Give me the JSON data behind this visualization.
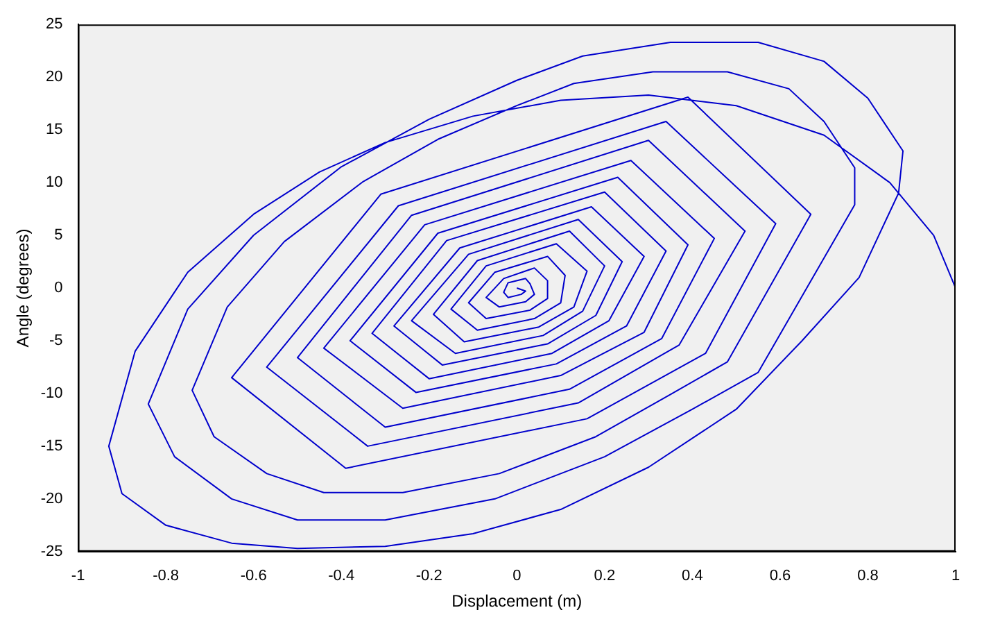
{
  "chart_data": {
    "type": "line",
    "xlabel": "Displacement (m)",
    "ylabel": "Angle (degrees)",
    "marker": "none",
    "grid": false,
    "legend": false,
    "xlim": [
      -1,
      1
    ],
    "xticks": [
      -1,
      -0.8,
      -0.6,
      -0.4,
      -0.2,
      0,
      0.2,
      0.4,
      0.6,
      0.8,
      1
    ],
    "ylim": [
      -25,
      25
    ],
    "yticks": [
      -25,
      -20,
      -15,
      -10,
      -5,
      0,
      5,
      10,
      15,
      20,
      25
    ],
    "series": [
      {
        "color": "#0000cc",
        "x": [
          1,
          0.95,
          0.85,
          0.7,
          0.5,
          0.3,
          0.1,
          -0.1,
          -0.3,
          -0.45,
          -0.6,
          -0.75,
          -0.87,
          -0.93,
          -0.9,
          -0.8,
          -0.65,
          -0.5,
          -0.3,
          -0.1,
          0.1,
          0.3,
          0.5,
          0.65,
          0.78,
          0.87,
          0.88,
          0.8,
          0.7,
          0.55,
          0.35,
          0.15,
          0,
          -0.2,
          -0.4,
          -0.6,
          -0.75,
          -0.84,
          -0.78,
          -0.65,
          -0.5,
          -0.3,
          -0.05,
          0.2,
          0.4,
          0.55,
          0.77,
          0.77,
          0.7,
          0.62,
          0.48,
          0.31,
          0.13,
          0,
          -0.18,
          -0.35,
          -0.53,
          -0.66,
          -0.74,
          -0.69,
          -0.57,
          -0.44,
          -0.26,
          -0.04,
          0.18,
          0.35,
          0.48,
          0.67,
          0.39,
          -0.31,
          -0.65,
          -0.39,
          0.16,
          0.43,
          0.59,
          0.34,
          -0.27,
          -0.57,
          -0.34,
          0.14,
          0.37,
          0.52,
          0.3,
          -0.24,
          -0.5,
          -0.3,
          0.12,
          0.33,
          0.45,
          0.26,
          -0.21,
          -0.44,
          -0.26,
          0.1,
          0.29,
          0.39,
          0.23,
          -0.18,
          -0.38,
          -0.23,
          0.09,
          0.25,
          0.34,
          0.2,
          -0.16,
          -0.33,
          -0.2,
          0.08,
          0.21,
          0.29,
          0.17,
          -0.13,
          -0.28,
          -0.17,
          0.07,
          0.18,
          0.24,
          0.14,
          -0.11,
          -0.24,
          -0.14,
          0.06,
          0.15,
          0.2,
          0.12,
          -0.09,
          -0.19,
          -0.12,
          0.05,
          0.13,
          0.16,
          0.09,
          -0.07,
          -0.15,
          -0.09,
          0.04,
          0.1,
          0.11,
          0.07,
          -0.05,
          -0.11,
          -0.07,
          0.03,
          0.07,
          0.07,
          0.04,
          -0.03,
          -0.07,
          -0.04,
          0.02,
          0.04,
          0.03,
          0.02,
          -0.02,
          -0.03,
          -0.02,
          0.01,
          0.02,
          0
        ],
        "values": [
          0,
          5,
          10,
          14.5,
          17.3,
          18.3,
          17.8,
          16.3,
          13.8,
          11,
          7,
          1.5,
          -6,
          -15,
          -19.5,
          -22.5,
          -24.2,
          -24.7,
          -24.5,
          -23.3,
          -21,
          -17,
          -11.5,
          -5,
          1,
          9,
          13,
          18,
          21.5,
          23.3,
          23.3,
          22,
          19.7,
          16,
          11.5,
          5,
          -2,
          -11,
          -16,
          -20,
          -22,
          -22,
          -20,
          -16,
          -11.5,
          -8,
          7.9,
          11.4,
          15.8,
          18.9,
          20.5,
          20.5,
          19.4,
          17.3,
          14.1,
          10.1,
          4.4,
          -1.8,
          -9.7,
          -14.1,
          -17.6,
          -19.4,
          -19.4,
          -17.6,
          -14.1,
          -10.1,
          -7,
          7,
          18.1,
          8.9,
          -8.5,
          -17.1,
          -12.4,
          -6.2,
          6.1,
          15.8,
          7.8,
          -7.5,
          -15,
          -10.9,
          -5.4,
          5.4,
          14,
          6.9,
          -6.6,
          -13.2,
          -9.6,
          -4.8,
          4.7,
          12.1,
          6,
          -5.7,
          -11.4,
          -8.3,
          -4.2,
          4.1,
          10.5,
          5.2,
          -5,
          -9.9,
          -7.2,
          -3.6,
          3.5,
          9.1,
          4.5,
          -4.3,
          -8.6,
          -6.2,
          -3.1,
          3,
          7.7,
          3.8,
          -3.6,
          -7.3,
          -5.3,
          -2.6,
          2.5,
          6.5,
          3.2,
          -3.1,
          -6.2,
          -4.5,
          -2.2,
          2.1,
          5.4,
          2.6,
          -2.5,
          -5.1,
          -3.7,
          -1.8,
          1.6,
          4.2,
          2.1,
          -2,
          -4,
          -2.9,
          -1.4,
          1.2,
          3,
          1.5,
          -1.4,
          -2.9,
          -2.1,
          -1,
          0.7,
          1.9,
          0.9,
          -0.9,
          -1.8,
          -1.3,
          -0.6,
          0.4,
          0.9,
          0.5,
          -0.4,
          -0.9,
          -0.6,
          -0.3,
          0
        ]
      }
    ]
  }
}
